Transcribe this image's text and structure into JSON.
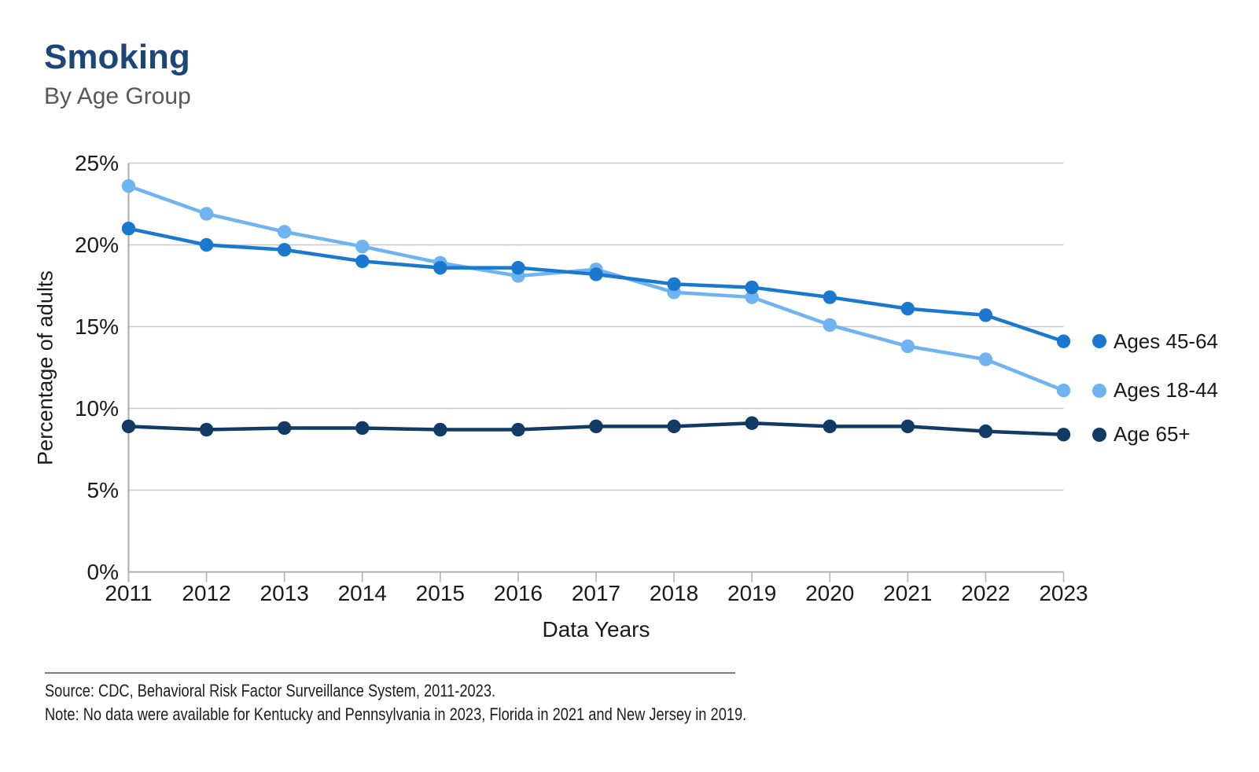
{
  "page": {
    "title": "Smoking",
    "subtitle": "By Age Group"
  },
  "chart_data": {
    "type": "line",
    "x": [
      2011,
      2012,
      2013,
      2014,
      2015,
      2016,
      2017,
      2018,
      2019,
      2020,
      2021,
      2022,
      2023
    ],
    "series": [
      {
        "name": "Ages 45-64",
        "color": "#1A79CF",
        "values": [
          21.0,
          20.0,
          19.7,
          19.0,
          18.6,
          18.6,
          18.2,
          17.6,
          17.4,
          16.8,
          16.1,
          15.7,
          14.1
        ]
      },
      {
        "name": "Ages 18-44",
        "color": "#6FB3F0",
        "values": [
          23.6,
          21.9,
          20.8,
          19.9,
          18.9,
          18.1,
          18.5,
          17.1,
          16.8,
          15.1,
          13.8,
          13.0,
          11.1
        ]
      },
      {
        "name": "Age 65+",
        "color": "#113A64",
        "values": [
          8.9,
          8.7,
          8.8,
          8.8,
          8.7,
          8.7,
          8.9,
          8.9,
          9.1,
          8.9,
          8.9,
          8.6,
          8.4
        ]
      }
    ],
    "title": "Smoking",
    "subtitle": "By Age Group",
    "xlabel": "Data Years",
    "ylabel": "Percentage of adults",
    "ylim": [
      0,
      25
    ],
    "yticks": [
      0,
      5,
      10,
      15,
      20,
      25
    ],
    "ytick_labels": [
      "0%",
      "5%",
      "10%",
      "15%",
      "20%",
      "25%"
    ],
    "grid": true,
    "legend_position": "right"
  },
  "footer": {
    "source": "Source: CDC, Behavioral Risk Factor Surveillance System, 2011-2023.",
    "note": "Note: No data were available for Kentucky and Pennsylvania in 2023, Florida in 2021 and New Jersey in 2019."
  }
}
